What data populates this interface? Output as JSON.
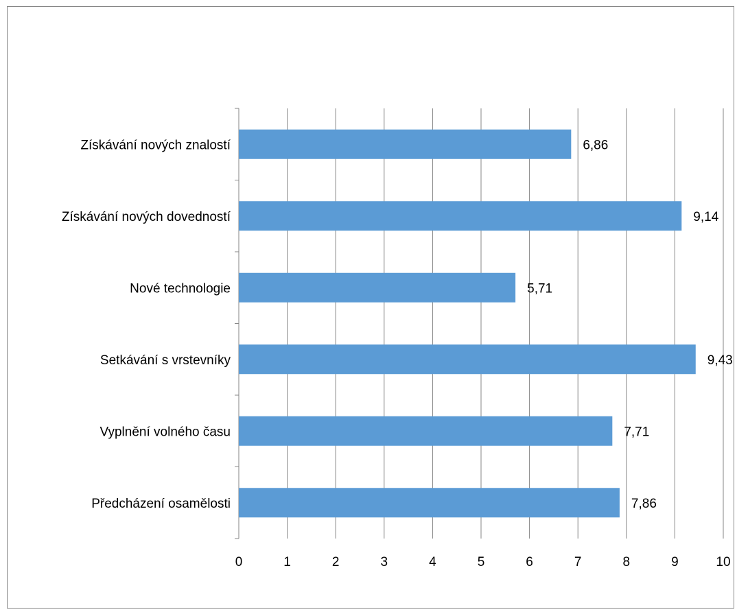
{
  "chart_data": {
    "type": "bar",
    "orientation": "horizontal",
    "categories": [
      "Získávání nových znalostí",
      "Získávání nových dovedností",
      "Nové technologie",
      "Setkávání s vrstevníky",
      "Vyplnění volného času",
      "Předcházení osamělosti"
    ],
    "values": [
      6.86,
      9.14,
      5.71,
      9.43,
      7.71,
      7.86
    ],
    "data_labels": [
      "6,86",
      "9,14",
      "5,71",
      "9,43",
      "7,71",
      "7,86"
    ],
    "xlim": [
      0,
      10
    ],
    "x_ticks": [
      "0",
      "1",
      "2",
      "3",
      "4",
      "5",
      "6",
      "7",
      "8",
      "9",
      "10"
    ],
    "grid": "vertical",
    "legend": "none",
    "bar_color": "#5B9BD5",
    "grid_color": "#868686"
  }
}
